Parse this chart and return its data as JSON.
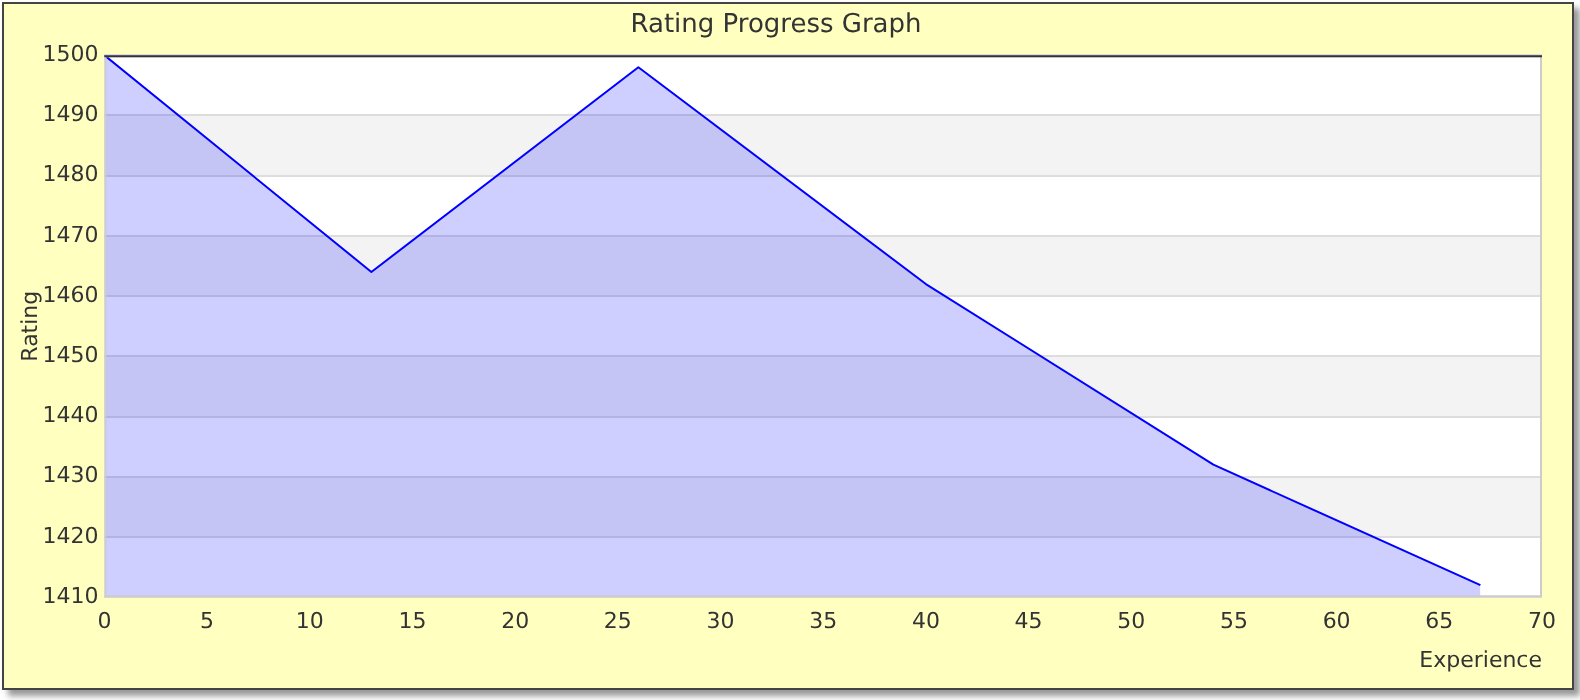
{
  "chart_data": {
    "type": "area",
    "title": "Rating Progress Graph",
    "xlabel": "Experience",
    "ylabel": "Rating",
    "x": [
      0,
      13,
      26,
      40,
      54,
      67
    ],
    "series": [
      {
        "color": "#0000ff",
        "values": [
          1500,
          1464,
          1498,
          1462,
          1432,
          1412
        ]
      }
    ],
    "xlim": [
      0,
      70
    ],
    "xticks": [
      0,
      5,
      10,
      15,
      20,
      25,
      30,
      35,
      40,
      45,
      50,
      55,
      60,
      65,
      70
    ],
    "ylim": [
      1410,
      1500
    ],
    "yticks": [
      1410,
      1420,
      1430,
      1440,
      1450,
      1460,
      1470,
      1480,
      1490,
      1500
    ],
    "grid": "y",
    "legend": false,
    "marker": "none",
    "line_style": "solid"
  }
}
